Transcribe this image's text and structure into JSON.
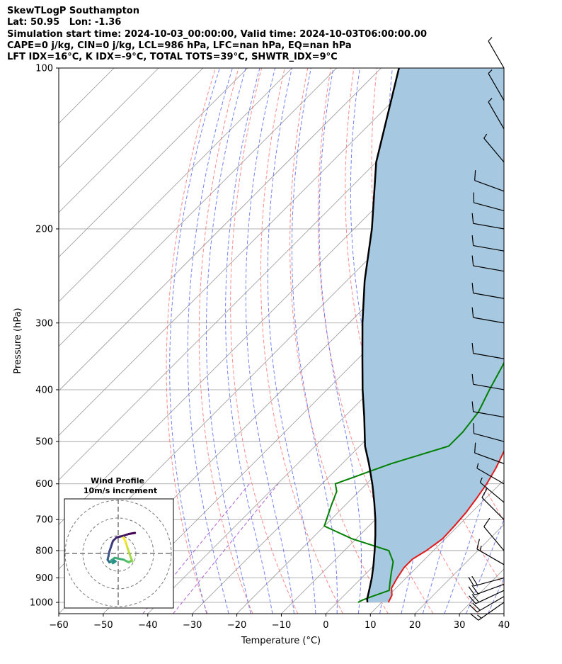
{
  "title": {
    "line1": "SkewTLogP Southampton",
    "line2": "Lat: 50.95   Lon: -1.36",
    "line3": "Simulation start time: 2024-10-03_00:00:00, Valid time: 2024-10-03T06:00:00.00",
    "line4": "CAPE=0 j/kg, CIN=0 j/kg, LCL=986 hPa, LFC=nan hPa, EQ=nan hPa",
    "line5": "LFT IDX=16°C, K IDX=-9°C, TOTAL TOTS=39°C, SHWTR_IDX=9°C"
  },
  "chart_data": {
    "type": "line",
    "chart_kind": "skew-T log-P diagram",
    "xlabel": "Temperature (°C)",
    "ylabel": "Pressure (hPa)",
    "xlim": [
      -60,
      40
    ],
    "ylim": [
      1050,
      100
    ],
    "y_scale": "log",
    "x_ticks": [
      -60,
      -50,
      -40,
      -30,
      -20,
      -10,
      0,
      10,
      20,
      30,
      40
    ],
    "x_tick_labels": [
      "−60",
      "−50",
      "−40",
      "−30",
      "−20",
      "−10",
      "0",
      "10",
      "20",
      "30",
      "40"
    ],
    "y_ticks": [
      1000,
      900,
      800,
      700,
      600,
      500,
      400,
      300,
      200,
      100
    ],
    "grid": true,
    "colors": {
      "temperature": "#e31a1c",
      "dewpoint": "#008000",
      "parcel": "#000000",
      "fill": "#a6c8e0",
      "dry_adiabat": "#ff6b6b",
      "moist_adiabat": "#5a6cf0",
      "mixing_ratio": "#9a3cc8",
      "isotherm": "#999999"
    },
    "series": [
      {
        "points": [
          [
            1000,
            11.5
          ],
          [
            970,
            10.7
          ],
          [
            940,
            9.0
          ],
          [
            900,
            8.0
          ],
          [
            860,
            7.2
          ],
          [
            830,
            7.2
          ],
          [
            800,
            8.4
          ],
          [
            760,
            9.4
          ],
          [
            720,
            9.2
          ],
          [
            680,
            8.8
          ],
          [
            640,
            8.0
          ],
          [
            600,
            7.0
          ],
          [
            560,
            5.5
          ],
          [
            520,
            3.5
          ],
          [
            480,
            1.3
          ],
          [
            440,
            -1.2
          ],
          [
            400,
            -4.0
          ],
          [
            360,
            -7.2
          ],
          [
            320,
            -10.5
          ],
          [
            300,
            -12.5
          ],
          [
            270,
            -15.5
          ],
          [
            250,
            -17.5
          ],
          [
            240,
            -19.5
          ],
          [
            230,
            -21.5
          ],
          [
            210,
            -24.0
          ],
          [
            200,
            -27.0
          ],
          [
            180,
            -31.0
          ],
          [
            165,
            -36.0
          ],
          [
            150,
            -40.5
          ],
          [
            130,
            -47.0
          ],
          [
            115,
            -52.0
          ],
          [
            100,
            -58.0
          ]
        ]
      },
      {
        "points": [
          [
            1000,
            4.7
          ],
          [
            990,
            5.2
          ],
          [
            975,
            6.5
          ],
          [
            950,
            9.0
          ],
          [
            920,
            7.5
          ],
          [
            880,
            5.5
          ],
          [
            840,
            3.5
          ],
          [
            800,
            0.0
          ],
          [
            760,
            -11.0
          ],
          [
            720,
            -20.0
          ],
          [
            660,
            -23.0
          ],
          [
            620,
            -25.0
          ],
          [
            600,
            -27.0
          ],
          [
            550,
            -19.0
          ],
          [
            510,
            -10.0
          ],
          [
            480,
            -10.0
          ],
          [
            440,
            -11.0
          ],
          [
            400,
            -13.5
          ],
          [
            360,
            -16.0
          ],
          [
            320,
            -19.0
          ],
          [
            290,
            -22.5
          ],
          [
            260,
            -25.5
          ],
          [
            240,
            -28.5
          ],
          [
            220,
            -32.0
          ],
          [
            190,
            -37.0
          ],
          [
            170,
            -42.0
          ],
          [
            150,
            -47.0
          ],
          [
            130,
            -50.5
          ],
          [
            115,
            -51.5
          ],
          [
            100,
            -51.5
          ]
        ]
      },
      {
        "points": [
          [
            1000,
            6.8
          ],
          [
            986,
            6.0
          ],
          [
            950,
            4.5
          ],
          [
            900,
            2.3
          ],
          [
            850,
            -0.3
          ],
          [
            800,
            -3.2
          ],
          [
            750,
            -6.4
          ],
          [
            700,
            -10.0
          ],
          [
            650,
            -14.1
          ],
          [
            600,
            -18.7
          ],
          [
            550,
            -24.0
          ],
          [
            510,
            -28.8
          ],
          [
            450,
            -35.5
          ],
          [
            400,
            -42.0
          ],
          [
            350,
            -49.0
          ],
          [
            300,
            -57.0
          ],
          [
            250,
            -66.0
          ],
          [
            200,
            -76.0
          ],
          [
            150,
            -90.0
          ],
          [
            100,
            -106.0
          ]
        ]
      }
    ],
    "wind_barbs": [
      {
        "p": 1000,
        "dir": 235,
        "spd": 9
      },
      {
        "p": 975,
        "dir": 240,
        "spd": 11
      },
      {
        "p": 950,
        "dir": 245,
        "spd": 12
      },
      {
        "p": 925,
        "dir": 250,
        "spd": 12
      },
      {
        "p": 900,
        "dir": 255,
        "spd": 11
      },
      {
        "p": 850,
        "dir": 300,
        "spd": 8
      },
      {
        "p": 800,
        "dir": 320,
        "spd": 7
      },
      {
        "p": 700,
        "dir": 315,
        "spd": 7
      },
      {
        "p": 650,
        "dir": 310,
        "spd": 5
      },
      {
        "p": 600,
        "dir": 300,
        "spd": 5
      },
      {
        "p": 550,
        "dir": 290,
        "spd": 6
      },
      {
        "p": 500,
        "dir": 285,
        "spd": 7
      },
      {
        "p": 450,
        "dir": 280,
        "spd": 6
      },
      {
        "p": 400,
        "dir": 280,
        "spd": 6
      },
      {
        "p": 350,
        "dir": 280,
        "spd": 6
      },
      {
        "p": 300,
        "dir": 280,
        "spd": 6
      },
      {
        "p": 270,
        "dir": 280,
        "spd": 7
      },
      {
        "p": 240,
        "dir": 280,
        "spd": 7
      },
      {
        "p": 220,
        "dir": 280,
        "spd": 6
      },
      {
        "p": 200,
        "dir": 280,
        "spd": 6
      },
      {
        "p": 185,
        "dir": 285,
        "spd": 6
      },
      {
        "p": 170,
        "dir": 290,
        "spd": 6
      },
      {
        "p": 150,
        "dir": 320,
        "spd": 5
      },
      {
        "p": 130,
        "dir": 330,
        "spd": 5
      },
      {
        "p": 115,
        "dir": 330,
        "spd": 4
      },
      {
        "p": 100,
        "dir": 330,
        "spd": 4
      }
    ],
    "hodograph": {
      "title": "Wind Profile",
      "subtitle": "10m/s increment",
      "ring_step_ms": 10,
      "points": [
        [
          9.5,
          -11.6
        ],
        [
          6,
          -11
        ],
        [
          3,
          -10
        ],
        [
          -1,
          -9
        ],
        [
          -3,
          -7
        ],
        [
          -4,
          -4
        ],
        [
          -5,
          -1
        ],
        [
          -5.5,
          1.5
        ],
        [
          -6,
          3.5
        ],
        [
          -5,
          5
        ],
        [
          -4,
          4.5
        ],
        [
          -2.5,
          3.8
        ],
        [
          -1.5,
          4.5
        ],
        [
          -3,
          5.5
        ],
        [
          -4,
          4
        ],
        [
          -2,
          2.5
        ],
        [
          3,
          3.5
        ],
        [
          4,
          4
        ],
        [
          6,
          5
        ],
        [
          7.5,
          4
        ],
        [
          8,
          4.5
        ],
        [
          7,
          2
        ],
        [
          6,
          -1
        ],
        [
          5,
          -4
        ],
        [
          4,
          -7
        ],
        [
          3,
          -9
        ]
      ]
    }
  }
}
